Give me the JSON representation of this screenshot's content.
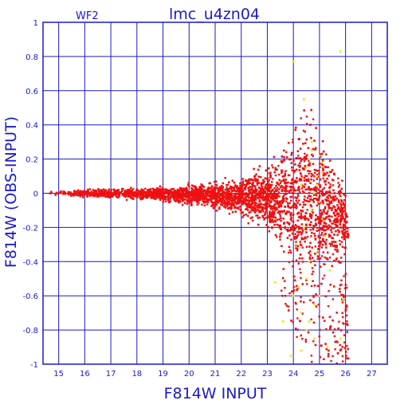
{
  "chart_data": {
    "type": "scatter",
    "title": "lmc_u4zn04",
    "subtitle": "WF2",
    "xlabel": "F814W INPUT",
    "ylabel": "F814W (OBS-INPUT)",
    "xlim": [
      14.4,
      27.6
    ],
    "ylim": [
      -1,
      1
    ],
    "x_ticks": [
      15,
      16,
      17,
      18,
      19,
      20,
      21,
      22,
      23,
      24,
      25,
      26,
      27
    ],
    "y_ticks": [
      -1,
      -0.8,
      -0.6,
      -0.4,
      -0.2,
      0,
      0.2,
      0.4,
      0.6,
      0.8,
      1
    ],
    "grid": true,
    "colors": {
      "axes": "#1a1acc",
      "grid": "#1a1acc",
      "primary": "#ee1111",
      "secondary": "#f2e400"
    },
    "series": [
      {
        "color": "#ee1111",
        "trend": {
          "description_free": true,
          "x": [
            14.6,
            16,
            17,
            18,
            19,
            20,
            21,
            22,
            23,
            23.5,
            24,
            24.5,
            25,
            25.5,
            26,
            26.1
          ],
          "y_upper": [
            0.02,
            0.04,
            0.05,
            0.04,
            0.05,
            0.06,
            0.08,
            0.12,
            0.18,
            0.24,
            0.35,
            0.6,
            0.33,
            0.1,
            -0.3,
            -0.92
          ],
          "y_lower": [
            -0.02,
            -0.03,
            -0.05,
            -0.06,
            -0.1,
            -0.13,
            -0.18,
            -0.25,
            -0.45,
            -0.6,
            -0.8,
            -0.98,
            -1.0,
            -1.0,
            -1.0,
            -1.0
          ]
        }
      },
      {
        "color": "#f2e400",
        "x": [
          24.1,
          24.2,
          24.3,
          24.3,
          24.4,
          24.5,
          24.5,
          24.6,
          24.6,
          24.7,
          24.7,
          24.8,
          24.8,
          24.9,
          24.9,
          25.0,
          25.0,
          25.1,
          25.1,
          25.2,
          25.3,
          24.6,
          24.8,
          25.0,
          24.3,
          24.9,
          25.1,
          24.5,
          24.7,
          24.4,
          24.0,
          23.6,
          23.9,
          25.8,
          25.9,
          25.4,
          23.3,
          24.0,
          25.8
        ],
        "y": [
          -0.3,
          -0.55,
          -0.7,
          0.05,
          -0.2,
          0.15,
          -0.8,
          0.2,
          -0.4,
          -0.1,
          0.25,
          0.0,
          -0.65,
          0.1,
          -0.35,
          -0.05,
          0.22,
          -0.15,
          0.18,
          -0.25,
          -0.9,
          -0.75,
          -0.85,
          -0.6,
          -0.92,
          0.05,
          0.12,
          -0.5,
          0.3,
          0.55,
          -0.6,
          -0.75,
          -0.95,
          -0.85,
          -0.62,
          -0.45,
          -0.52,
          0.77,
          0.83
        ]
      }
    ]
  }
}
